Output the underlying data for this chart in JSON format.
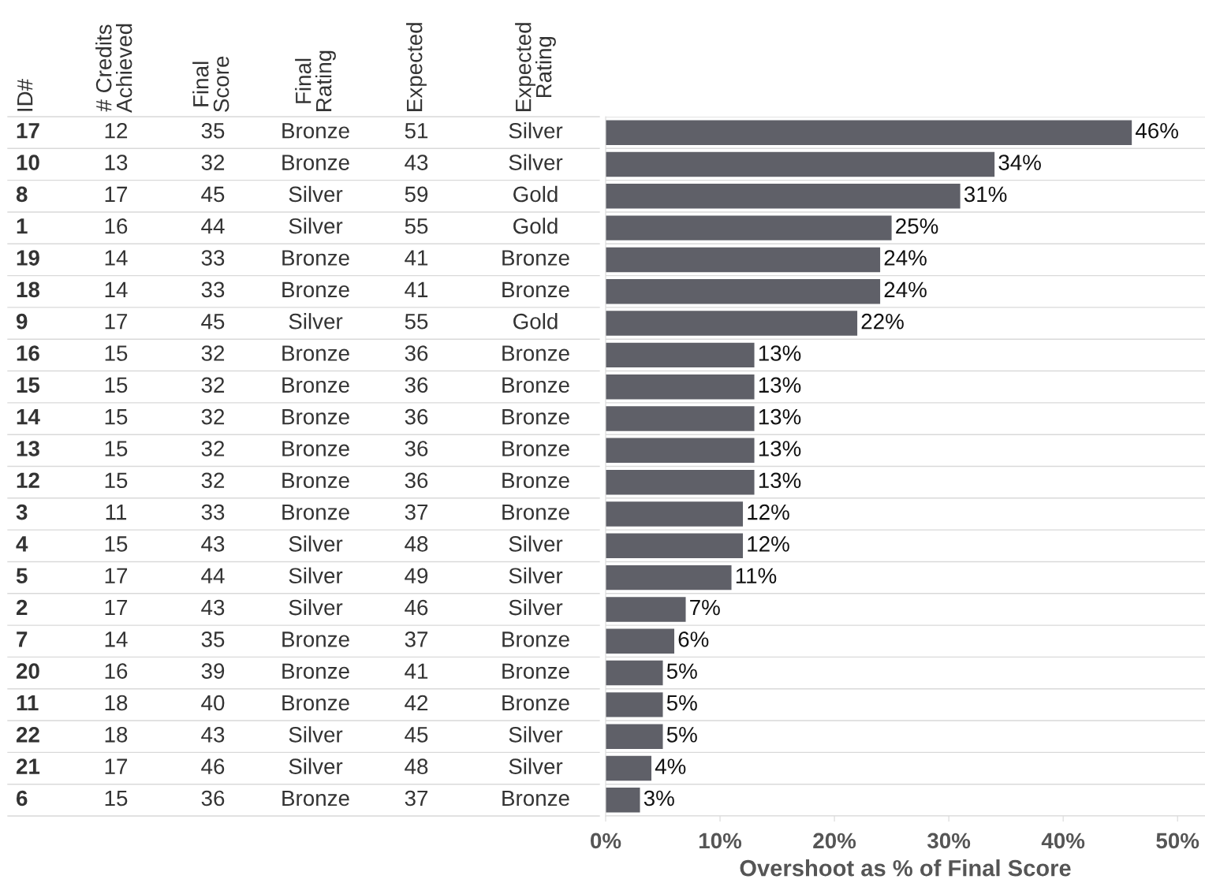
{
  "chart_data": [
    {
      "type": "other",
      "categories": [
        "ID#",
        "# Credits\nAchieved",
        "Final\nScore",
        "Final\nRating",
        "Expected",
        "Expected\nRating"
      ],
      "cell_labels": [
        [
          "17",
          "12",
          "35",
          "Bronze",
          "51",
          "Silver"
        ],
        [
          "10",
          "13",
          "32",
          "Bronze",
          "43",
          "Silver"
        ],
        [
          "8",
          "17",
          "45",
          "Silver",
          "59",
          "Gold"
        ],
        [
          "1",
          "16",
          "44",
          "Silver",
          "55",
          "Gold"
        ],
        [
          "19",
          "14",
          "33",
          "Bronze",
          "41",
          "Bronze"
        ],
        [
          "18",
          "14",
          "33",
          "Bronze",
          "41",
          "Bronze"
        ],
        [
          "9",
          "17",
          "45",
          "Silver",
          "55",
          "Gold"
        ],
        [
          "16",
          "15",
          "32",
          "Bronze",
          "36",
          "Bronze"
        ],
        [
          "15",
          "15",
          "32",
          "Bronze",
          "36",
          "Bronze"
        ],
        [
          "14",
          "15",
          "32",
          "Bronze",
          "36",
          "Bronze"
        ],
        [
          "13",
          "15",
          "32",
          "Bronze",
          "36",
          "Bronze"
        ],
        [
          "12",
          "15",
          "32",
          "Bronze",
          "36",
          "Bronze"
        ],
        [
          "3",
          "11",
          "33",
          "Bronze",
          "37",
          "Bronze"
        ],
        [
          "4",
          "15",
          "43",
          "Silver",
          "48",
          "Silver"
        ],
        [
          "5",
          "17",
          "44",
          "Silver",
          "49",
          "Silver"
        ],
        [
          "2",
          "17",
          "43",
          "Silver",
          "46",
          "Silver"
        ],
        [
          "7",
          "14",
          "35",
          "Bronze",
          "37",
          "Bronze"
        ],
        [
          "20",
          "16",
          "39",
          "Bronze",
          "41",
          "Bronze"
        ],
        [
          "11",
          "18",
          "40",
          "Bronze",
          "42",
          "Bronze"
        ],
        [
          "22",
          "18",
          "43",
          "Silver",
          "45",
          "Silver"
        ],
        [
          "21",
          "17",
          "46",
          "Silver",
          "48",
          "Silver"
        ],
        [
          "6",
          "15",
          "36",
          "Bronze",
          "37",
          "Bronze"
        ]
      ]
    },
    {
      "type": "bar",
      "orientation": "horizontal",
      "xlabel": "Overshoot as % of Final Score",
      "categories": [
        null,
        null,
        null,
        null,
        null,
        null,
        null,
        null,
        null,
        null,
        null,
        null,
        null,
        null,
        null,
        null,
        null,
        null,
        null,
        null,
        null,
        null
      ],
      "values": [
        46,
        34,
        31,
        25,
        24,
        24,
        22,
        13,
        13,
        13,
        13,
        13,
        12,
        12,
        11,
        7,
        6,
        5,
        5,
        5,
        4,
        3
      ],
      "value_labels": [
        "46%",
        "34%",
        "31%",
        "25%",
        "24%",
        "24%",
        "22%",
        "13%",
        "13%",
        "13%",
        "13%",
        "13%",
        "12%",
        "12%",
        "11%",
        "7%",
        "6%",
        "5%",
        "5%",
        "5%",
        "4%",
        "3%"
      ],
      "color": "#5f6068",
      "xlim": [
        0,
        52.4
      ],
      "xticks": [
        {
          "value": 0,
          "label": "0%"
        },
        {
          "value": 10,
          "label": "10%"
        },
        {
          "value": 20,
          "label": "20%"
        },
        {
          "value": 30,
          "label": "30%"
        },
        {
          "value": 40,
          "label": "40%"
        },
        {
          "value": 50,
          "label": "50%"
        }
      ],
      "tick_labels": "x",
      "grid": false,
      "legend": false
    }
  ]
}
